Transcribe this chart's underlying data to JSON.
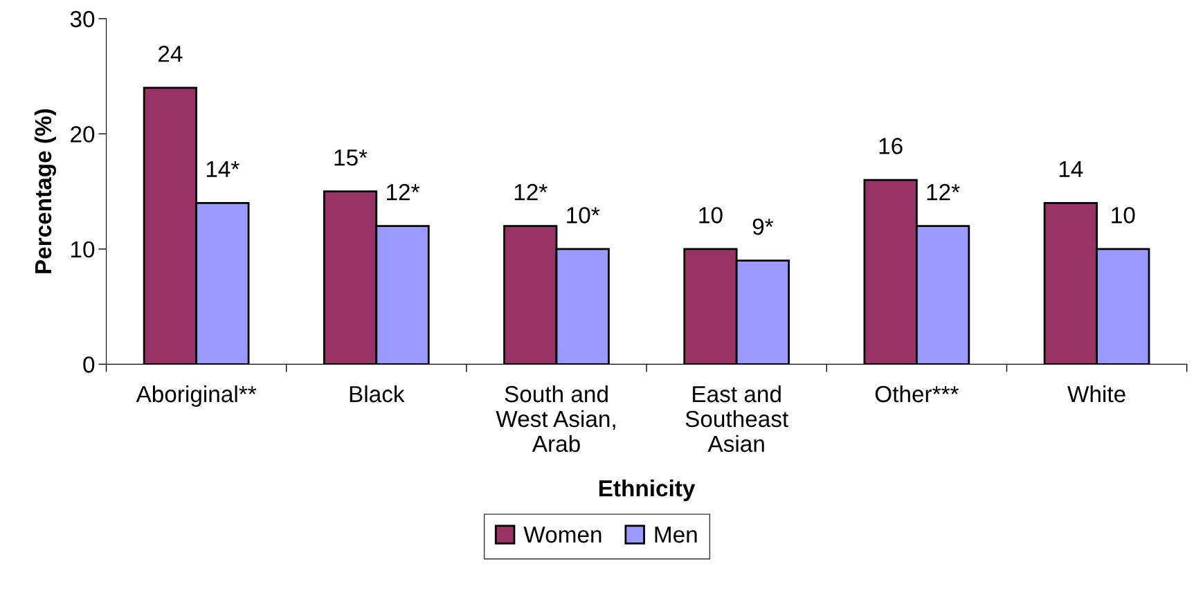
{
  "chart_data": {
    "type": "bar",
    "xlabel": "Ethnicity",
    "ylabel": "Percentage (%)",
    "categories": [
      "Aboriginal**",
      "Black",
      "South and\nWest Asian,\nArab",
      "East and\nSoutheast\nAsian",
      "Other***",
      "White"
    ],
    "series": [
      {
        "name": "Women",
        "color": "#993366",
        "values": [
          24,
          15,
          12,
          10,
          16,
          14
        ],
        "value_labels": [
          "24",
          "15*",
          "12*",
          "10",
          "16",
          "14"
        ]
      },
      {
        "name": "Men",
        "color": "#9999ff",
        "values": [
          14,
          12,
          10,
          9,
          12,
          10
        ],
        "value_labels": [
          "14*",
          "12*",
          "10*",
          "9*",
          "12*",
          "10"
        ]
      }
    ],
    "ylim": [
      0,
      30
    ],
    "yticks": [
      0,
      10,
      20,
      30
    ],
    "grid": false,
    "legend": "bottom"
  }
}
